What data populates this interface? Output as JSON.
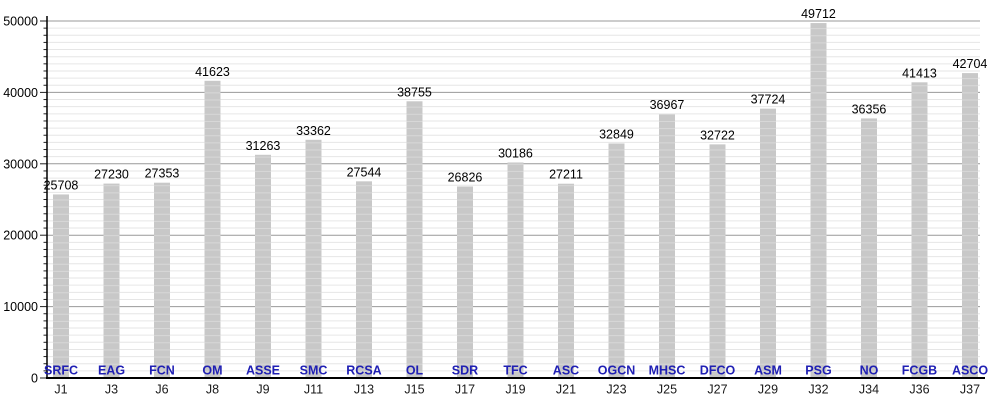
{
  "chart_data": {
    "type": "bar",
    "title": "",
    "categories": [
      "J1",
      "J3",
      "J6",
      "J8",
      "J9",
      "J11",
      "J13",
      "J15",
      "J17",
      "J19",
      "J21",
      "J23",
      "J25",
      "J27",
      "J29",
      "J32",
      "J34",
      "J36",
      "J37"
    ],
    "teams": [
      "SRFC",
      "EAG",
      "FCN",
      "OM",
      "ASSE",
      "SMC",
      "RCSA",
      "OL",
      "SDR",
      "TFC",
      "ASC",
      "OGCN",
      "MHSC",
      "DFCO",
      "ASM",
      "PSG",
      "NO",
      "FCGB",
      "ASCO"
    ],
    "values": [
      25708,
      27230,
      27353,
      41623,
      31263,
      33362,
      27544,
      38755,
      26826,
      30186,
      27211,
      32849,
      36967,
      32722,
      37724,
      49712,
      36356,
      41413,
      42704
    ],
    "value_labels": [
      "25708",
      "27230",
      "27353",
      "41623",
      "31263",
      "33362",
      "27544",
      "38755",
      "26826",
      "30186",
      "27211",
      "32849",
      "36967",
      "32722",
      "37724",
      "49712",
      "36356",
      "41413",
      "42704"
    ],
    "ylim": [
      0,
      50000
    ],
    "ytick_values": [
      0,
      10000,
      20000,
      30000,
      40000,
      50000
    ],
    "ytick_labels": [
      "0",
      "10000",
      "20000",
      "30000",
      "40000",
      "50000"
    ],
    "minor_tick_interval": 1000,
    "grid": "major horizontal + minor horizontal",
    "legend": "none",
    "colors": {
      "background": "#ffffff",
      "bar": "#c8c8c8",
      "bar_stripe": "#d8d8d8",
      "minor_grid": "#e6e6e6",
      "major_grid": "#999999",
      "axis": "#000000",
      "tick": "#222222",
      "value_label": "#000000",
      "team_label": "#1f1fb4",
      "x_label": "#1a1a1a",
      "y_label": "#000000"
    }
  }
}
